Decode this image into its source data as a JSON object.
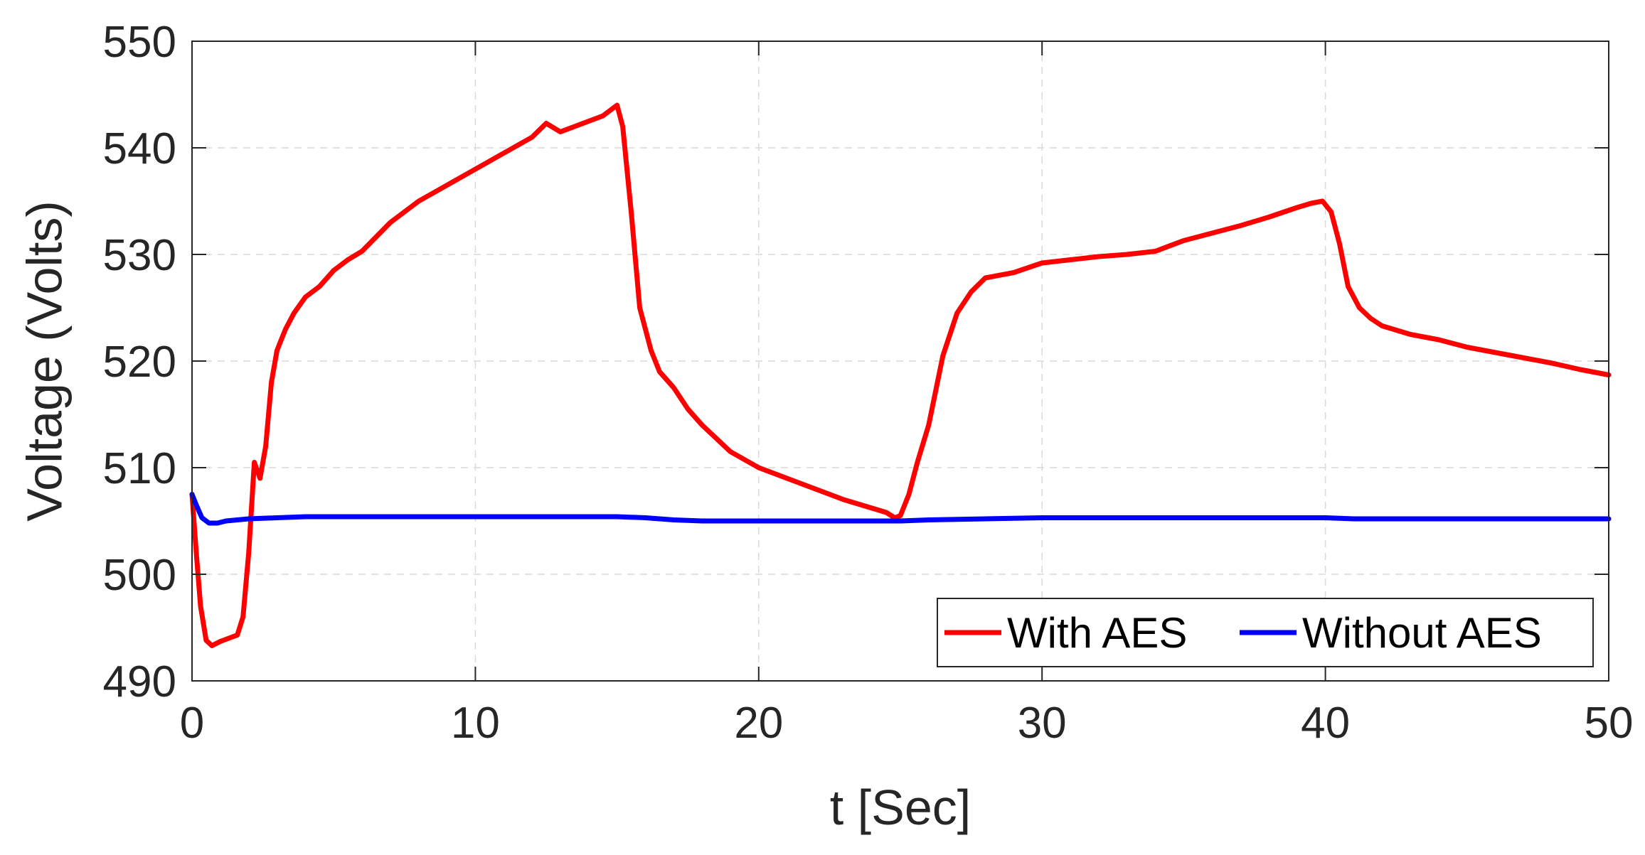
{
  "chart_data": {
    "type": "line",
    "title": "",
    "xlabel": "t [Sec]",
    "ylabel": "Voltage (Volts)",
    "xlim": [
      0,
      50
    ],
    "ylim": [
      490,
      550
    ],
    "xticks": [
      "0",
      "10",
      "20",
      "30",
      "40",
      "50"
    ],
    "yticks": [
      "490",
      "500",
      "510",
      "520",
      "530",
      "540",
      "550"
    ],
    "grid": true,
    "legend_position": "bottom-right",
    "legend_orientation": "horizontal",
    "series": [
      {
        "name": "With AES",
        "color": "#ff0000",
        "x": [
          0,
          0.15,
          0.3,
          0.5,
          0.7,
          1.0,
          1.3,
          1.6,
          1.8,
          2.0,
          2.2,
          2.4,
          2.6,
          2.8,
          3.0,
          3.3,
          3.6,
          4.0,
          4.5,
          5.0,
          5.5,
          6.0,
          7.0,
          8.0,
          9.0,
          10.0,
          11.0,
          12.0,
          12.5,
          13.0,
          14.0,
          14.5,
          15.0,
          15.2,
          15.5,
          15.8,
          16.2,
          16.5,
          17.0,
          17.5,
          18.0,
          19.0,
          20.0,
          21.0,
          22.0,
          23.0,
          24.0,
          24.5,
          24.8,
          25.0,
          25.3,
          25.6,
          26.0,
          26.5,
          27.0,
          27.5,
          28.0,
          29.0,
          30.0,
          31.0,
          32.0,
          33.0,
          34.0,
          35.0,
          36.0,
          37.0,
          38.0,
          39.0,
          39.5,
          39.9,
          40.2,
          40.5,
          40.8,
          41.2,
          41.6,
          42.0,
          43.0,
          44.0,
          45.0,
          46.0,
          47.0,
          48.0,
          49.0,
          50.0
        ],
        "values": [
          507.5,
          502.0,
          497.0,
          493.8,
          493.3,
          493.7,
          494.0,
          494.3,
          496.0,
          502.0,
          510.5,
          509.0,
          512.0,
          518.0,
          521.0,
          523.0,
          524.5,
          526.0,
          527.0,
          528.5,
          529.5,
          530.3,
          533.0,
          535.0,
          536.5,
          538.0,
          539.5,
          541.0,
          542.3,
          541.5,
          542.5,
          543.0,
          544.0,
          542.0,
          534.0,
          525.0,
          521.0,
          519.0,
          517.5,
          515.5,
          514.0,
          511.5,
          510.0,
          509.0,
          508.0,
          507.0,
          506.2,
          505.8,
          505.3,
          505.5,
          507.5,
          510.5,
          514.0,
          520.5,
          524.5,
          526.5,
          527.8,
          528.3,
          529.2,
          529.5,
          529.8,
          530.0,
          530.3,
          531.3,
          532.0,
          532.7,
          533.5,
          534.4,
          534.8,
          535.0,
          534.0,
          531.0,
          527.0,
          525.0,
          524.0,
          523.3,
          522.5,
          522.0,
          521.3,
          520.8,
          520.3,
          519.8,
          519.2,
          518.7
        ]
      },
      {
        "name": "Without AES",
        "color": "#0000ff",
        "x": [
          0,
          0.15,
          0.35,
          0.6,
          0.9,
          1.2,
          1.6,
          2.0,
          3.0,
          4.0,
          5.0,
          10.0,
          15.0,
          16.0,
          17.0,
          18.0,
          20.0,
          22.0,
          24.0,
          25.0,
          26.0,
          28.0,
          30.0,
          35.0,
          40.0,
          41.0,
          45.0,
          50.0
        ],
        "values": [
          507.5,
          506.5,
          505.3,
          504.8,
          504.8,
          505.0,
          505.1,
          505.2,
          505.3,
          505.4,
          505.4,
          505.4,
          505.4,
          505.3,
          505.1,
          505.0,
          505.0,
          505.0,
          505.0,
          505.0,
          505.1,
          505.2,
          505.3,
          505.3,
          505.3,
          505.2,
          505.2,
          505.2
        ]
      }
    ]
  }
}
